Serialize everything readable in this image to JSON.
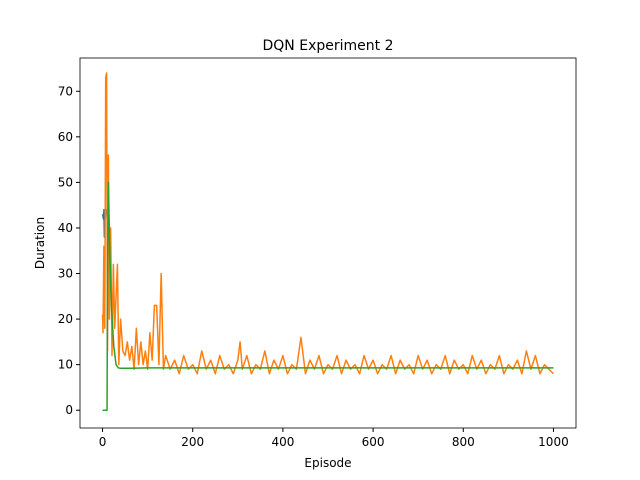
{
  "chart_data": {
    "type": "line",
    "title": "DQN Experiment 2",
    "x_label": "Episode",
    "y_label": "Duration",
    "xlim": [
      -50,
      1050
    ],
    "ylim": [
      -3.9,
      77.3
    ],
    "xticks": [
      0,
      200,
      400,
      600,
      800,
      1000
    ],
    "yticks": [
      0,
      10,
      20,
      30,
      40,
      50,
      60,
      70
    ],
    "series": [
      {
        "color": "#1f77b4",
        "x": [
          0,
          2,
          3,
          4,
          5,
          6,
          8,
          10
        ],
        "values": [
          43,
          42,
          44,
          38,
          43,
          42,
          44,
          43
        ]
      },
      {
        "color": "#ff7f0e",
        "x": [
          0,
          1,
          3,
          5,
          7,
          9,
          11,
          13,
          15,
          18,
          21,
          24,
          27,
          30,
          33,
          36,
          40,
          45,
          50,
          55,
          60,
          65,
          70,
          75,
          80,
          85,
          90,
          95,
          100,
          105,
          110,
          115,
          120,
          125,
          130,
          135,
          140,
          150,
          160,
          170,
          180,
          190,
          200,
          210,
          220,
          230,
          240,
          250,
          260,
          270,
          280,
          290,
          300,
          305,
          310,
          320,
          330,
          340,
          350,
          360,
          370,
          380,
          390,
          400,
          410,
          420,
          430,
          440,
          450,
          460,
          470,
          480,
          490,
          500,
          510,
          520,
          530,
          540,
          550,
          560,
          570,
          580,
          590,
          600,
          610,
          620,
          630,
          640,
          650,
          660,
          670,
          680,
          690,
          700,
          710,
          720,
          730,
          740,
          750,
          760,
          770,
          780,
          790,
          800,
          810,
          820,
          830,
          840,
          850,
          860,
          870,
          880,
          890,
          900,
          910,
          920,
          930,
          940,
          950,
          960,
          970,
          980,
          990,
          1000
        ],
        "values": [
          21,
          17,
          36,
          18,
          73,
          74,
          13,
          56,
          20,
          40,
          12,
          32,
          18,
          25,
          32,
          10,
          20,
          13,
          12,
          15,
          11,
          14,
          9,
          18,
          10,
          15,
          10,
          13,
          9,
          17,
          11,
          23,
          23,
          10,
          30,
          9,
          12,
          9,
          11,
          8,
          12,
          9,
          10,
          8,
          13,
          9,
          11,
          8,
          12,
          9,
          10,
          8,
          11,
          15,
          9,
          12,
          8,
          10,
          9,
          13,
          8,
          11,
          9,
          12,
          8,
          10,
          9,
          16,
          8,
          11,
          9,
          12,
          8,
          10,
          9,
          12,
          8,
          11,
          9,
          10,
          8,
          12,
          9,
          11,
          8,
          10,
          9,
          12,
          8,
          11,
          9,
          10,
          8,
          12,
          9,
          11,
          8,
          10,
          9,
          12,
          8,
          11,
          9,
          10,
          8,
          12,
          9,
          11,
          8,
          10,
          9,
          12,
          8,
          10,
          9,
          11,
          8,
          13,
          9,
          12,
          8,
          10,
          9,
          8
        ]
      },
      {
        "color": "#2ca02c",
        "x": [
          0,
          10,
          11,
          13,
          16,
          20,
          25,
          30,
          35,
          40,
          60,
          100,
          200,
          400,
          600,
          800,
          1000
        ],
        "values": [
          0,
          0,
          30,
          50,
          35,
          22,
          14,
          10,
          9.3,
          9.2,
          9.2,
          9.3,
          9.3,
          9.3,
          9.3,
          9.3,
          9.3
        ]
      }
    ]
  }
}
